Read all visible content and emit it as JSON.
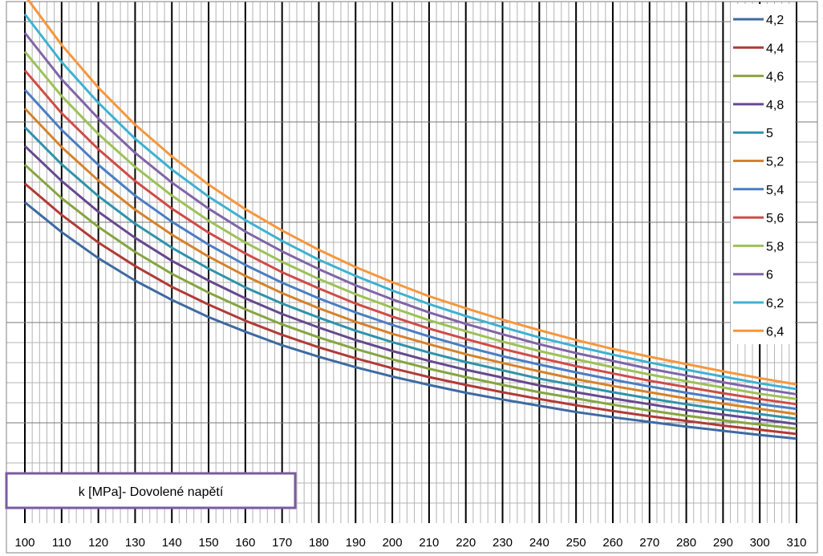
{
  "chart_data": {
    "type": "line",
    "title": "",
    "xlabel": "",
    "ylabel": "",
    "x": [
      100,
      110,
      120,
      130,
      140,
      150,
      160,
      170,
      180,
      190,
      200,
      210,
      220,
      230,
      240,
      250,
      260,
      270,
      280,
      290,
      300,
      310
    ],
    "xlim": [
      100,
      310
    ],
    "x_ticks": [
      "100",
      "110",
      "120",
      "130",
      "140",
      "150",
      "160",
      "170",
      "180",
      "190",
      "200",
      "210",
      "220",
      "230",
      "240",
      "250",
      "260",
      "270",
      "280",
      "290",
      "300",
      "310"
    ],
    "y_tick_labels_shown": false,
    "major_grid": true,
    "minor_grid": true,
    "legend_position": "right",
    "annotation": "k [MPa]- Dovolené napětí",
    "series": [
      {
        "name": "4,2",
        "color": "#3D6AA2",
        "values": [
          0.615,
          0.558,
          0.508,
          0.465,
          0.428,
          0.395,
          0.367,
          0.341,
          0.319,
          0.299,
          0.281,
          0.265,
          0.25,
          0.237,
          0.225,
          0.213,
          0.203,
          0.194,
          0.185,
          0.177,
          0.169,
          0.162
        ]
      },
      {
        "name": "4,4",
        "color": "#B13A36",
        "values": [
          0.651,
          0.591,
          0.538,
          0.493,
          0.453,
          0.419,
          0.388,
          0.361,
          0.337,
          0.316,
          0.297,
          0.28,
          0.265,
          0.251,
          0.238,
          0.226,
          0.215,
          0.205,
          0.196,
          0.187,
          0.179,
          0.171
        ]
      },
      {
        "name": "4,6",
        "color": "#86A540",
        "values": [
          0.687,
          0.623,
          0.568,
          0.52,
          0.478,
          0.442,
          0.41,
          0.381,
          0.356,
          0.334,
          0.314,
          0.296,
          0.28,
          0.265,
          0.251,
          0.239,
          0.227,
          0.216,
          0.206,
          0.197,
          0.189,
          0.181
        ]
      },
      {
        "name": "4,8",
        "color": "#66498F",
        "values": [
          0.723,
          0.656,
          0.597,
          0.547,
          0.503,
          0.465,
          0.431,
          0.401,
          0.375,
          0.351,
          0.33,
          0.311,
          0.294,
          0.279,
          0.264,
          0.251,
          0.239,
          0.228,
          0.217,
          0.208,
          0.199,
          0.19
        ]
      },
      {
        "name": "5",
        "color": "#2F93AA",
        "values": [
          0.759,
          0.688,
          0.627,
          0.574,
          0.528,
          0.488,
          0.452,
          0.421,
          0.394,
          0.369,
          0.347,
          0.327,
          0.309,
          0.293,
          0.277,
          0.264,
          0.251,
          0.239,
          0.228,
          0.218,
          0.209,
          0.2
        ]
      },
      {
        "name": "5,2",
        "color": "#D6822A",
        "values": [
          0.795,
          0.721,
          0.657,
          0.601,
          0.553,
          0.511,
          0.474,
          0.441,
          0.412,
          0.386,
          0.363,
          0.343,
          0.324,
          0.307,
          0.291,
          0.276,
          0.263,
          0.251,
          0.239,
          0.229,
          0.219,
          0.209
        ]
      },
      {
        "name": "5,4",
        "color": "#4A7EC4",
        "values": [
          0.831,
          0.754,
          0.687,
          0.628,
          0.578,
          0.534,
          0.495,
          0.461,
          0.431,
          0.404,
          0.38,
          0.358,
          0.338,
          0.32,
          0.304,
          0.289,
          0.275,
          0.262,
          0.25,
          0.239,
          0.228,
          0.219
        ]
      },
      {
        "name": "5,6",
        "color": "#D04B47",
        "values": [
          0.868,
          0.786,
          0.717,
          0.656,
          0.603,
          0.557,
          0.517,
          0.481,
          0.45,
          0.421,
          0.396,
          0.373,
          0.353,
          0.334,
          0.317,
          0.301,
          0.287,
          0.273,
          0.261,
          0.249,
          0.238,
          0.228
        ]
      },
      {
        "name": "5,8",
        "color": "#9DC157",
        "values": [
          0.904,
          0.819,
          0.746,
          0.683,
          0.628,
          0.58,
          0.538,
          0.501,
          0.468,
          0.439,
          0.413,
          0.389,
          0.368,
          0.348,
          0.33,
          0.314,
          0.299,
          0.285,
          0.272,
          0.26,
          0.248,
          0.238
        ]
      },
      {
        "name": "6",
        "color": "#8065A8",
        "values": [
          0.94,
          0.851,
          0.776,
          0.71,
          0.653,
          0.603,
          0.559,
          0.521,
          0.487,
          0.456,
          0.429,
          0.404,
          0.382,
          0.362,
          0.343,
          0.326,
          0.311,
          0.296,
          0.283,
          0.27,
          0.258,
          0.247
        ]
      },
      {
        "name": "6,2",
        "color": "#3FB1D1",
        "values": [
          0.976,
          0.884,
          0.806,
          0.737,
          0.678,
          0.626,
          0.581,
          0.541,
          0.505,
          0.474,
          0.446,
          0.42,
          0.397,
          0.376,
          0.356,
          0.339,
          0.323,
          0.308,
          0.294,
          0.281,
          0.268,
          0.257
        ]
      },
      {
        "name": "6,4",
        "color": "#F6973D",
        "values": [
          1.012,
          0.917,
          0.835,
          0.764,
          0.703,
          0.649,
          0.602,
          0.561,
          0.524,
          0.491,
          0.462,
          0.435,
          0.412,
          0.39,
          0.37,
          0.351,
          0.334,
          0.319,
          0.305,
          0.291,
          0.278,
          0.266
        ]
      }
    ]
  }
}
